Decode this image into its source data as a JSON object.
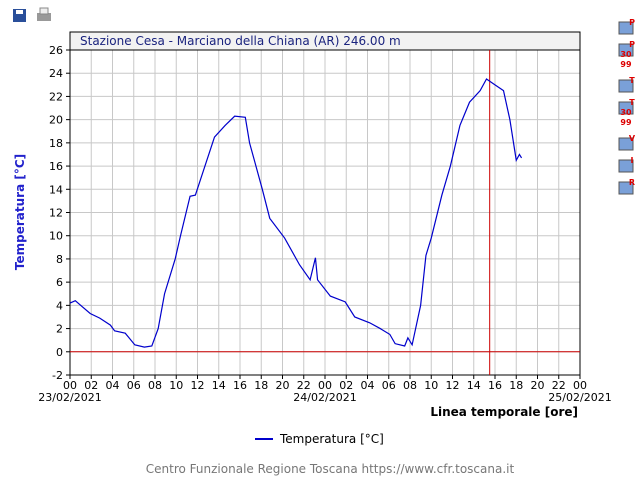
{
  "chart_data": {
    "type": "line",
    "title": "Stazione Cesa - Marciano della Chiana (AR) 246.00 m",
    "y_label": "Temperatura [°C]",
    "x_label": "Linea temporale [ore]",
    "footer": "Centro Funzionale Regione Toscana https://www.cfr.toscana.it",
    "xlim": [
      0,
      48
    ],
    "ylim": [
      -2,
      26
    ],
    "yticks": [
      -2,
      0,
      2,
      4,
      6,
      8,
      10,
      12,
      14,
      16,
      18,
      20,
      22,
      24,
      26
    ],
    "xticks": [
      {
        "value": 0,
        "label": "00"
      },
      {
        "value": 2,
        "label": "02"
      },
      {
        "value": 4,
        "label": "04"
      },
      {
        "value": 6,
        "label": "06"
      },
      {
        "value": 8,
        "label": "08"
      },
      {
        "value": 10,
        "label": "10"
      },
      {
        "value": 12,
        "label": "12"
      },
      {
        "value": 14,
        "label": "14"
      },
      {
        "value": 16,
        "label": "16"
      },
      {
        "value": 18,
        "label": "18"
      },
      {
        "value": 20,
        "label": "20"
      },
      {
        "value": 22,
        "label": "22"
      },
      {
        "value": 24,
        "label": "00"
      },
      {
        "value": 26,
        "label": "02"
      },
      {
        "value": 28,
        "label": "04"
      },
      {
        "value": 30,
        "label": "06"
      },
      {
        "value": 32,
        "label": "08"
      },
      {
        "value": 34,
        "label": "10"
      },
      {
        "value": 36,
        "label": "12"
      },
      {
        "value": 38,
        "label": "14"
      },
      {
        "value": 40,
        "label": "16"
      },
      {
        "value": 42,
        "label": "18"
      },
      {
        "value": 44,
        "label": "20"
      },
      {
        "value": 46,
        "label": "22"
      },
      {
        "value": 48,
        "label": "00"
      }
    ],
    "date_ticks": [
      {
        "value": 0,
        "label": "23/02/2021"
      },
      {
        "value": 24,
        "label": "24/02/2021"
      },
      {
        "value": 48,
        "label": "25/02/2021"
      }
    ],
    "grid": true,
    "reference_lines": {
      "y": 0,
      "x": 39.5,
      "color": "#cc0000"
    },
    "x": [
      0,
      0.5,
      1,
      1.9,
      2.8,
      3.8,
      4.2,
      5.2,
      6.1,
      7,
      7.7,
      8.3,
      8.9,
      9.9,
      10.4,
      11.3,
      11.8,
      12.7,
      13.6,
      14.6,
      15.5,
      16.5,
      16.9,
      18.1,
      18.8,
      20.2,
      21.6,
      22.6,
      23.1,
      23.3,
      24.5,
      25.9,
      26.8,
      28.2,
      29.2,
      30.1,
      30.6,
      31.5,
      31.8,
      32.2,
      33,
      33.5,
      34,
      35,
      35.8,
      36.7,
      37.6,
      38.6,
      39.2,
      40,
      40.8,
      41.4,
      42,
      42.3,
      42.5
    ],
    "series": [
      {
        "name": "Temperatura [°C]",
        "color": "#0000cc",
        "values": [
          4.2,
          4.4,
          4.0,
          3.3,
          2.9,
          2.3,
          1.8,
          1.6,
          0.6,
          0.4,
          0.5,
          2.0,
          5.0,
          8.0,
          10.0,
          13.4,
          13.5,
          16.0,
          18.5,
          19.5,
          20.3,
          20.2,
          18.0,
          14.0,
          11.5,
          9.8,
          7.5,
          6.2,
          8.1,
          6.2,
          4.8,
          4.3,
          3.0,
          2.5,
          2.0,
          1.5,
          0.7,
          0.5,
          1.2,
          0.6,
          4.0,
          8.3,
          9.8,
          13.5,
          16.0,
          19.5,
          21.5,
          22.5,
          23.5,
          23.0,
          22.5,
          20.0,
          16.5,
          17.0,
          16.7
        ]
      }
    ],
    "side_buttons": [
      [
        "P"
      ],
      [
        "P",
        "30",
        "99"
      ],
      [
        "T"
      ],
      [
        "T",
        "30",
        "99"
      ],
      [
        "V"
      ],
      [
        "I"
      ],
      [
        "R"
      ]
    ]
  }
}
